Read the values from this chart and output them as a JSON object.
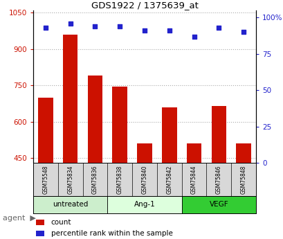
{
  "title": "GDS1922 / 1375639_at",
  "categories": [
    "GSM75548",
    "GSM75834",
    "GSM75836",
    "GSM75838",
    "GSM75840",
    "GSM75842",
    "GSM75844",
    "GSM75846",
    "GSM75848"
  ],
  "count_values": [
    700,
    960,
    790,
    745,
    510,
    660,
    510,
    665,
    510
  ],
  "percentile_values": [
    93,
    96,
    94,
    94,
    91,
    91,
    87,
    93,
    90
  ],
  "groups": [
    {
      "label": "untreated",
      "indices": [
        0,
        1,
        2
      ],
      "color": "#cceecc"
    },
    {
      "label": "Ang-1",
      "indices": [
        3,
        4,
        5
      ],
      "color": "#ddffdd"
    },
    {
      "label": "VEGF",
      "indices": [
        6,
        7,
        8
      ],
      "color": "#33cc33"
    }
  ],
  "ylim_left": [
    430,
    1060
  ],
  "yticks_left": [
    450,
    600,
    750,
    900,
    1050
  ],
  "ylim_right": [
    0,
    105
  ],
  "yticks_right": [
    0,
    25,
    50,
    75,
    100
  ],
  "bar_color": "#cc1100",
  "scatter_color": "#2222cc",
  "bar_bottom": 430,
  "grid_color": "#aaaaaa",
  "sample_box_color": "#d8d8d8",
  "plot_bg": "#ffffff",
  "legend_count": "count",
  "legend_percentile": "percentile rank within the sample"
}
